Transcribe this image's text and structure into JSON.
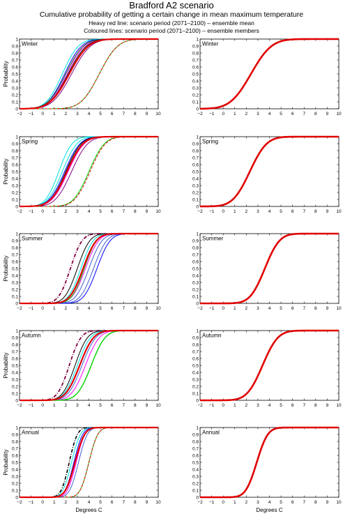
{
  "header": {
    "title": "Bradford A2 scenario",
    "subtitle": "Cumulative probability of getting a certain change in mean maximum temperature",
    "note1": "Heavy red line: scenario period (2071–2100) – ensemble mean",
    "note2": "Coloured lines: scenario period (2071–2100) – ensemble members"
  },
  "chart_data": [
    {
      "type": "line",
      "panel": "left",
      "label": "Winter",
      "ylabel": "Probability",
      "xlabel": "",
      "xlim": [
        -2,
        10
      ],
      "ylim": [
        0,
        1
      ],
      "series": [
        {
          "mean": 2.3,
          "sd": 1.3,
          "color": "#e00000",
          "width": 2.2
        },
        {
          "mean": 1.7,
          "sd": 1.1,
          "color": "#00e0e0",
          "width": 1
        },
        {
          "mean": 1.9,
          "sd": 1.15,
          "color": "#0000ff",
          "width": 1
        },
        {
          "mean": 2.1,
          "sd": 1.2,
          "color": "#ff00ff",
          "width": 1
        },
        {
          "mean": 2.2,
          "sd": 1.25,
          "color": "#000000",
          "width": 1
        },
        {
          "mean": 2.5,
          "sd": 1.3,
          "color": "#800080",
          "width": 1
        },
        {
          "mean": 2.0,
          "sd": 1.2,
          "color": "#1a6b1a",
          "width": 1
        },
        {
          "mean": 4.9,
          "sd": 1.25,
          "color": "#00d000",
          "width": 1
        },
        {
          "mean": 4.9,
          "sd": 1.25,
          "color": "#e00000",
          "width": 1,
          "dash": "4,2"
        }
      ]
    },
    {
      "type": "line",
      "panel": "right",
      "label": "Winter",
      "ylabel": "",
      "xlabel": "",
      "xlim": [
        -2,
        10
      ],
      "ylim": [
        0,
        1
      ],
      "series": [
        {
          "mean": 2.4,
          "sd": 1.4,
          "color": "#e00000",
          "width": 2.6
        }
      ]
    },
    {
      "type": "line",
      "panel": "left",
      "label": "Spring",
      "ylabel": "Probability",
      "xlabel": "",
      "xlim": [
        -2,
        10
      ],
      "ylim": [
        0,
        1
      ],
      "series": [
        {
          "mean": 2.1,
          "sd": 1.1,
          "color": "#e00000",
          "width": 2.2
        },
        {
          "mean": 1.4,
          "sd": 0.9,
          "color": "#00e0e0",
          "width": 1
        },
        {
          "mean": 1.7,
          "sd": 1.0,
          "color": "#00e0e0",
          "width": 1
        },
        {
          "mean": 1.9,
          "sd": 1.05,
          "color": "#0000ff",
          "width": 1
        },
        {
          "mean": 2.2,
          "sd": 1.1,
          "color": "#ff00ff",
          "width": 1
        },
        {
          "mean": 2.0,
          "sd": 1.05,
          "color": "#000000",
          "width": 1
        },
        {
          "mean": 2.5,
          "sd": 1.1,
          "color": "#800080",
          "width": 1
        },
        {
          "mean": 4.0,
          "sd": 1.05,
          "color": "#00d000",
          "width": 1
        },
        {
          "mean": 4.1,
          "sd": 1.05,
          "color": "#e00000",
          "width": 1,
          "dash": "4,2"
        }
      ]
    },
    {
      "type": "line",
      "panel": "right",
      "label": "Spring",
      "ylabel": "",
      "xlabel": "",
      "xlim": [
        -2,
        10
      ],
      "ylim": [
        0,
        1
      ],
      "series": [
        {
          "mean": 2.3,
          "sd": 1.15,
          "color": "#e00000",
          "width": 2.6
        }
      ]
    },
    {
      "type": "line",
      "panel": "left",
      "label": "Summer",
      "ylabel": "Probability",
      "xlabel": "",
      "xlim": [
        -2,
        10
      ],
      "ylim": [
        0,
        1
      ],
      "series": [
        {
          "mean": 3.5,
          "sd": 0.9,
          "color": "#e00000",
          "width": 2.2
        },
        {
          "mean": 2.4,
          "sd": 0.8,
          "color": "#800040",
          "width": 1.8,
          "dash": "5,2,1,2"
        },
        {
          "mean": 3.0,
          "sd": 0.85,
          "color": "#000000",
          "width": 1
        },
        {
          "mean": 3.3,
          "sd": 0.85,
          "color": "#00e0e0",
          "width": 1
        },
        {
          "mean": 3.7,
          "sd": 0.9,
          "color": "#ff00ff",
          "width": 1
        },
        {
          "mean": 4.0,
          "sd": 0.9,
          "color": "#4060d0",
          "width": 1
        },
        {
          "mean": 4.4,
          "sd": 0.9,
          "color": "#4060d0",
          "width": 1
        },
        {
          "mean": 4.7,
          "sd": 0.9,
          "color": "#0000ff",
          "width": 1
        },
        {
          "mean": 3.6,
          "sd": 0.85,
          "color": "#00d000",
          "width": 1
        }
      ]
    },
    {
      "type": "line",
      "panel": "right",
      "label": "Summer",
      "ylabel": "",
      "xlabel": "",
      "xlim": [
        -2,
        10
      ],
      "ylim": [
        0,
        1
      ],
      "series": [
        {
          "mean": 3.6,
          "sd": 1.0,
          "color": "#e00000",
          "width": 2.6
        }
      ]
    },
    {
      "type": "line",
      "panel": "left",
      "label": "Autumn",
      "ylabel": "Probability",
      "xlabel": "",
      "xlim": [
        -2,
        10
      ],
      "ylim": [
        0,
        1
      ],
      "series": [
        {
          "mean": 3.2,
          "sd": 0.95,
          "color": "#e00000",
          "width": 2.2
        },
        {
          "mean": 2.3,
          "sd": 0.8,
          "color": "#800040",
          "width": 1.8,
          "dash": "5,2,1,2"
        },
        {
          "mean": 2.8,
          "sd": 0.85,
          "color": "#000000",
          "width": 1
        },
        {
          "mean": 3.0,
          "sd": 0.9,
          "color": "#00e0e0",
          "width": 1
        },
        {
          "mean": 3.4,
          "sd": 0.95,
          "color": "#4060d0",
          "width": 1
        },
        {
          "mean": 3.7,
          "sd": 0.95,
          "color": "#ff00ff",
          "width": 1
        },
        {
          "mean": 4.2,
          "sd": 0.95,
          "color": "#00d000",
          "width": 1.4
        }
      ]
    },
    {
      "type": "line",
      "panel": "right",
      "label": "Autumn",
      "ylabel": "",
      "xlabel": "",
      "xlim": [
        -2,
        10
      ],
      "ylim": [
        0,
        1
      ],
      "series": [
        {
          "mean": 3.4,
          "sd": 1.05,
          "color": "#e00000",
          "width": 2.6
        }
      ]
    },
    {
      "type": "line",
      "panel": "left",
      "label": "Annual",
      "ylabel": "Probability",
      "xlabel": "Degrees C",
      "xlim": [
        -2,
        10
      ],
      "ylim": [
        0,
        1
      ],
      "series": [
        {
          "mean": 2.8,
          "sd": 0.65,
          "color": "#e00000",
          "width": 2.2
        },
        {
          "mean": 2.3,
          "sd": 0.55,
          "color": "#000000",
          "width": 1.6,
          "dash": "5,2,1,2"
        },
        {
          "mean": 2.5,
          "sd": 0.6,
          "color": "#00e0e0",
          "width": 1
        },
        {
          "mean": 2.7,
          "sd": 0.6,
          "color": "#0000ff",
          "width": 1
        },
        {
          "mean": 2.9,
          "sd": 0.6,
          "color": "#ff00ff",
          "width": 1
        },
        {
          "mean": 3.1,
          "sd": 0.6,
          "color": "#4060d0",
          "width": 1
        },
        {
          "mean": 4.0,
          "sd": 0.6,
          "color": "#00d000",
          "width": 1
        },
        {
          "mean": 4.0,
          "sd": 0.6,
          "color": "#e00000",
          "width": 1,
          "dash": "4,2"
        }
      ]
    },
    {
      "type": "line",
      "panel": "right",
      "label": "Annual",
      "ylabel": "",
      "xlabel": "Degrees C",
      "xlim": [
        -2,
        10
      ],
      "ylim": [
        0,
        1
      ],
      "series": [
        {
          "mean": 2.9,
          "sd": 0.75,
          "color": "#e00000",
          "width": 2.6
        }
      ]
    }
  ]
}
